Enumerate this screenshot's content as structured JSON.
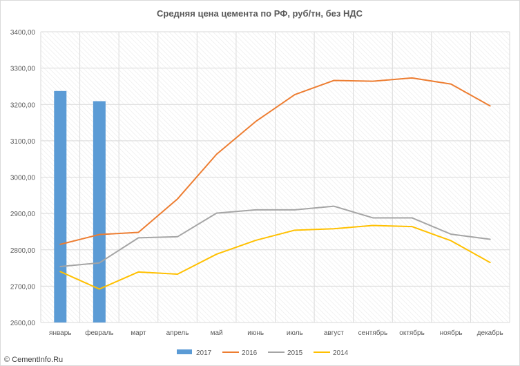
{
  "chart_data": {
    "type": "bar+line",
    "title": "Средняя цена цемента по РФ, руб/тн, без НДС",
    "xlabel": "",
    "ylabel": "",
    "ylim": [
      2600,
      3400
    ],
    "ytick_labels": [
      "2600,00",
      "2700,00",
      "2800,00",
      "2900,00",
      "3000,00",
      "3100,00",
      "3200,00",
      "3300,00",
      "3400,00"
    ],
    "categories": [
      "январь",
      "февраль",
      "март",
      "апрель",
      "май",
      "июнь",
      "июль",
      "август",
      "сентябрь",
      "октябрь",
      "ноябрь",
      "декабрь"
    ],
    "grid": true,
    "legend_position": "bottom",
    "series": [
      {
        "name": "2017",
        "kind": "bar",
        "color": "#5b9bd5",
        "values": [
          3237,
          3209,
          null,
          null,
          null,
          null,
          null,
          null,
          null,
          null,
          null,
          null
        ]
      },
      {
        "name": "2016",
        "kind": "line",
        "color": "#ed7d31",
        "values": [
          2815,
          2842,
          2848,
          2940,
          3063,
          3153,
          3227,
          3266,
          3264,
          3273,
          3256,
          3196
        ]
      },
      {
        "name": "2015",
        "kind": "line",
        "color": "#a5a5a5",
        "values": [
          2754,
          2764,
          2833,
          2836,
          2901,
          2910,
          2910,
          2920,
          2888,
          2888,
          2843,
          2829
        ]
      },
      {
        "name": "2014",
        "kind": "line",
        "color": "#ffc000",
        "values": [
          2740,
          2692,
          2739,
          2733,
          2788,
          2826,
          2854,
          2858,
          2867,
          2864,
          2825,
          2765
        ]
      }
    ]
  },
  "watermark": {
    "text": "© CementInfo.Ru",
    "icon": "copyright-icon"
  }
}
